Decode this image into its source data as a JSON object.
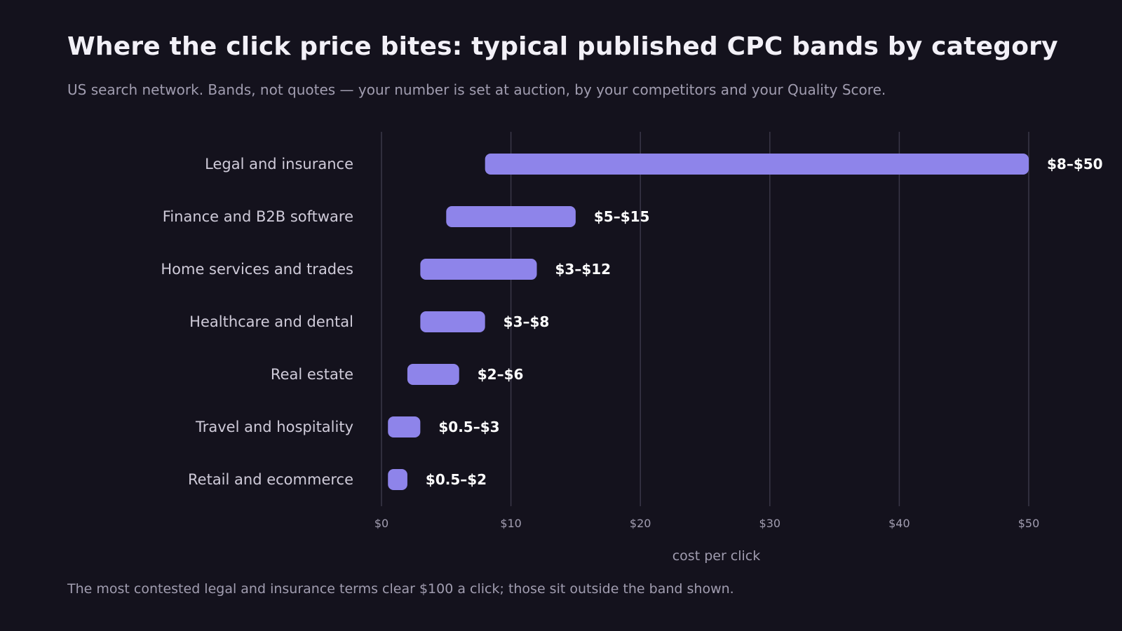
{
  "header": {
    "title": "Where the click price bites: typical published CPC bands by category",
    "subtitle": "US search network. Bands, not quotes — your number is set at auction, by your competitors and your Quality Score."
  },
  "footnote": "The most contested legal and insurance terms clear $100 a click; those sit outside the band shown.",
  "colors": {
    "bar": "#8e84ea",
    "background": "#14121d",
    "grid": "#3a3748"
  },
  "chart_data": {
    "type": "bar",
    "orientation": "horizontal",
    "style": "range",
    "xlabel": "cost per click",
    "xlim": [
      0,
      50
    ],
    "xticks": [
      0,
      10,
      20,
      30,
      40,
      50
    ],
    "xtick_labels": [
      "$0",
      "$10",
      "$20",
      "$30",
      "$40",
      "$50"
    ],
    "grid": "vertical",
    "categories": [
      "Legal and insurance",
      "Finance and B2B software",
      "Home services and trades",
      "Healthcare and dental",
      "Real estate",
      "Travel and hospitality",
      "Retail and ecommerce"
    ],
    "ranges": [
      [
        8,
        50
      ],
      [
        5,
        15
      ],
      [
        3,
        12
      ],
      [
        3,
        8
      ],
      [
        2,
        6
      ],
      [
        0.5,
        3
      ],
      [
        0.5,
        2
      ]
    ],
    "range_labels": [
      "$8–$50",
      "$5–$15",
      "$3–$12",
      "$3–$8",
      "$2–$6",
      "$0.5–$3",
      "$0.5–$2"
    ]
  }
}
